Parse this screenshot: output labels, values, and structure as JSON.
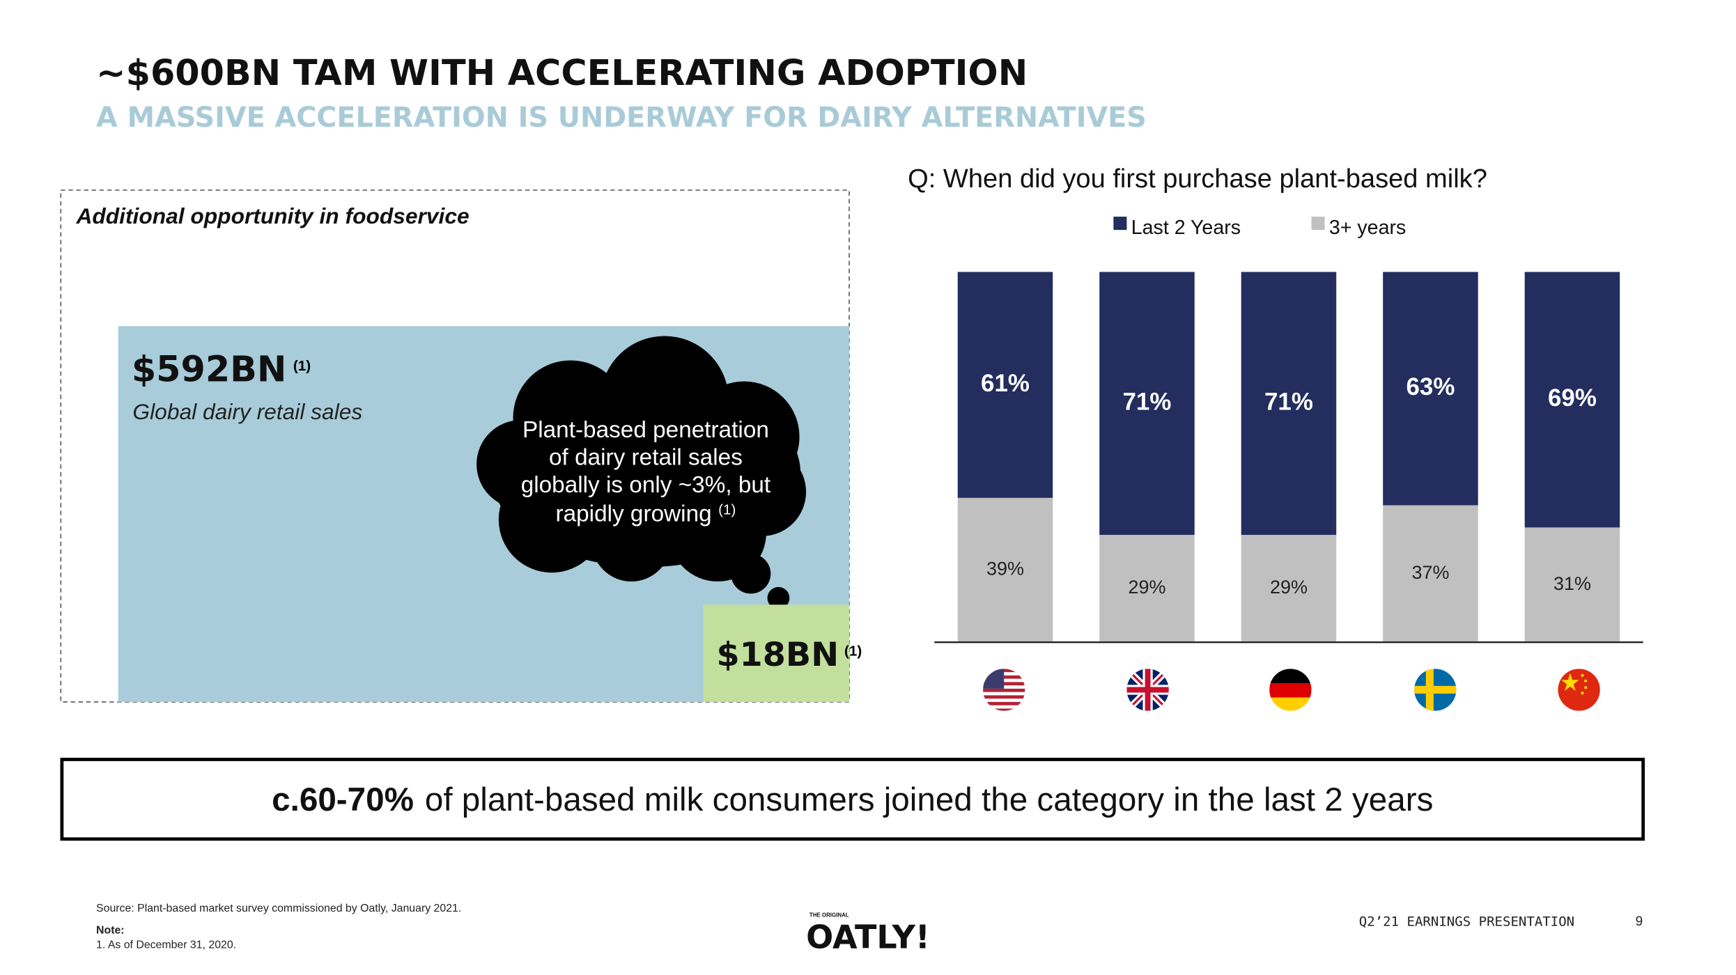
{
  "header": {
    "title": "~$600BN TAM WITH ACCELERATING ADOPTION",
    "subtitle": "A MASSIVE ACCELERATION IS UNDERWAY FOR DAIRY ALTERNATIVES"
  },
  "tam": {
    "box_title": "Additional opportunity in foodservice",
    "total": "$592BN",
    "total_note": "(1)",
    "total_label": "Global dairy retail sales",
    "bubble": [
      "Plant-based penetration",
      "of dairy retail sales",
      "globally is only ~3%, but",
      "rapidly growing"
    ],
    "bubble_note": "(1)",
    "plant": "$18BN",
    "plant_note": "(1)"
  },
  "chart_data": {
    "type": "stacked_bar",
    "title": "Q: When did you first purchase plant-based milk?",
    "categories": [
      null,
      null,
      null,
      null,
      null
    ],
    "series": [
      {
        "name": "Last 2 Years",
        "color": "#232d5e",
        "values": [
          61,
          71,
          71,
          63,
          69
        ],
        "value_labels": [
          "61%",
          "71%",
          "71%",
          "63%",
          "69%"
        ]
      },
      {
        "name": "3+ years",
        "color": "#c0c0c0",
        "values": [
          39,
          29,
          29,
          37,
          31
        ],
        "value_labels": [
          "39%",
          "29%",
          "29%",
          "37%",
          "31%"
        ]
      }
    ],
    "ylim": [
      0,
      100
    ],
    "grid": false
  },
  "callout": {
    "bold": "c.60-70%",
    "text": "of plant-based milk consumers joined the category in the last 2 years"
  },
  "footer": {
    "source": "Source: Plant-based market survey commissioned by Oatly, January 2021.",
    "note_title": "Note:",
    "note": "1. As of December 31, 2020.",
    "logo_tag": "THE ORIGINAL",
    "logo": "OATLY!",
    "presentation": "Q2’21 EARNINGS PRESENTATION",
    "page": "9"
  }
}
